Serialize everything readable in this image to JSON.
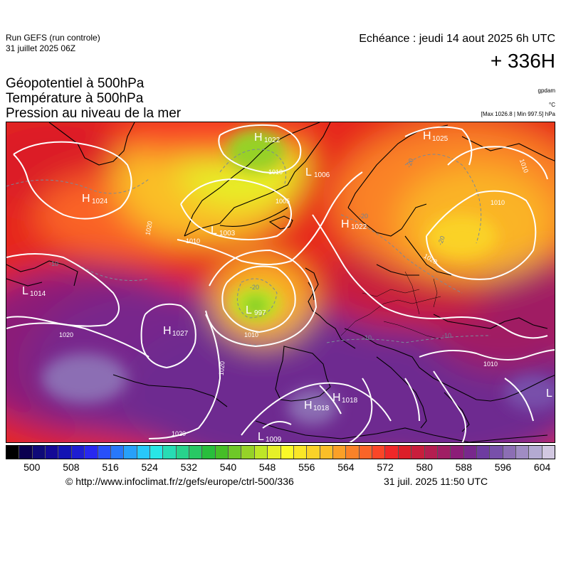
{
  "header": {
    "run_title": "Run GEFS (run controle)",
    "run_date": "31 juillet 2025 06Z",
    "valid_line": "Echéance : jeudi 14 aout 2025 6h UTC",
    "lead_time": "+ 336H"
  },
  "params": {
    "line1": "Géopotentiel à 500hPa",
    "line2": "Température à 500hPa",
    "line3": "Pression au niveau de la mer"
  },
  "units": {
    "geopotential": "gpdam",
    "temperature": "°C",
    "maxmin": "[Max 1026.8 | Min 997.5] hPa"
  },
  "pressure_centers": [
    {
      "type": "H",
      "value": "1022"
    },
    {
      "type": "H",
      "value": "1025"
    },
    {
      "type": "H",
      "value": "1024"
    },
    {
      "type": "L",
      "value": "1006"
    },
    {
      "type": "L",
      "value": "1003"
    },
    {
      "type": "H",
      "value": "1022"
    },
    {
      "type": "L",
      "value": "1014"
    },
    {
      "type": "L",
      "value": "997"
    },
    {
      "type": "H",
      "value": "1027"
    },
    {
      "type": "H",
      "value": "1018"
    },
    {
      "type": "H",
      "value": "1018"
    },
    {
      "type": "L",
      "value": "1009"
    },
    {
      "type": "L",
      "value": ""
    }
  ],
  "isobar_labels": [
    "1010",
    "1010",
    "1020",
    "1010",
    "1005",
    "1020",
    "1010",
    "1020",
    "1020",
    "1020",
    "1010",
    "1010"
  ],
  "temperature_labels": [
    "-20",
    "-20",
    "-20",
    "-10",
    "-10",
    "-10",
    "-20"
  ],
  "colorbar": {
    "colors": [
      "#000000",
      "#0a0050",
      "#0f0a78",
      "#140a96",
      "#1414b4",
      "#1e1ed2",
      "#2828f0",
      "#2850fa",
      "#2878fa",
      "#28a0fa",
      "#28c8fa",
      "#28e6e6",
      "#28dcb4",
      "#28d28c",
      "#28c864",
      "#28be3c",
      "#46be28",
      "#6ec828",
      "#96d228",
      "#bee628",
      "#e6f028",
      "#fafa28",
      "#fae628",
      "#fad228",
      "#fabe28",
      "#faa028",
      "#fa8228",
      "#fa6428",
      "#fa4628",
      "#f02828",
      "#dc1e28",
      "#c81e3c",
      "#b41e50",
      "#a01e64",
      "#8c1e78",
      "#78288c",
      "#6e3ca0",
      "#7850aa",
      "#8c6eb4",
      "#a08cc3",
      "#b4aad2",
      "#d2c8e1"
    ],
    "tick_labels": [
      "500",
      "508",
      "516",
      "524",
      "532",
      "540",
      "548",
      "556",
      "564",
      "572",
      "580",
      "588",
      "596",
      "604"
    ]
  },
  "footer": {
    "copyright": "© http://www.infoclimat.fr/z/gefs/europe/ctrl-500/336",
    "generated": "31 juil. 2025 11:50 UTC"
  }
}
